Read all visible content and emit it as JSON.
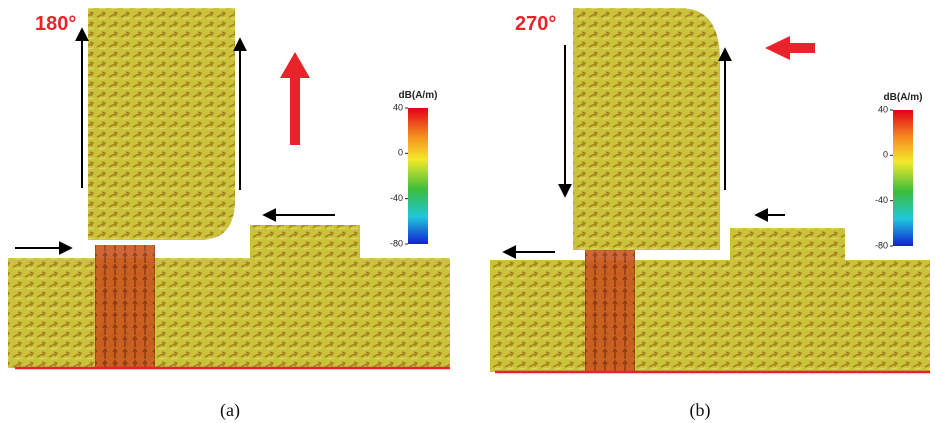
{
  "panels": [
    {
      "angle": "180°",
      "colorbar": {
        "label": "dB(A/m)",
        "ticks": [
          40,
          0,
          -40,
          -80
        ]
      },
      "caption": "(a)"
    },
    {
      "angle": "270°",
      "colorbar": {
        "label": "dB(A/m)",
        "ticks": [
          40,
          0,
          -40,
          -80
        ]
      },
      "caption": "(b)"
    }
  ]
}
